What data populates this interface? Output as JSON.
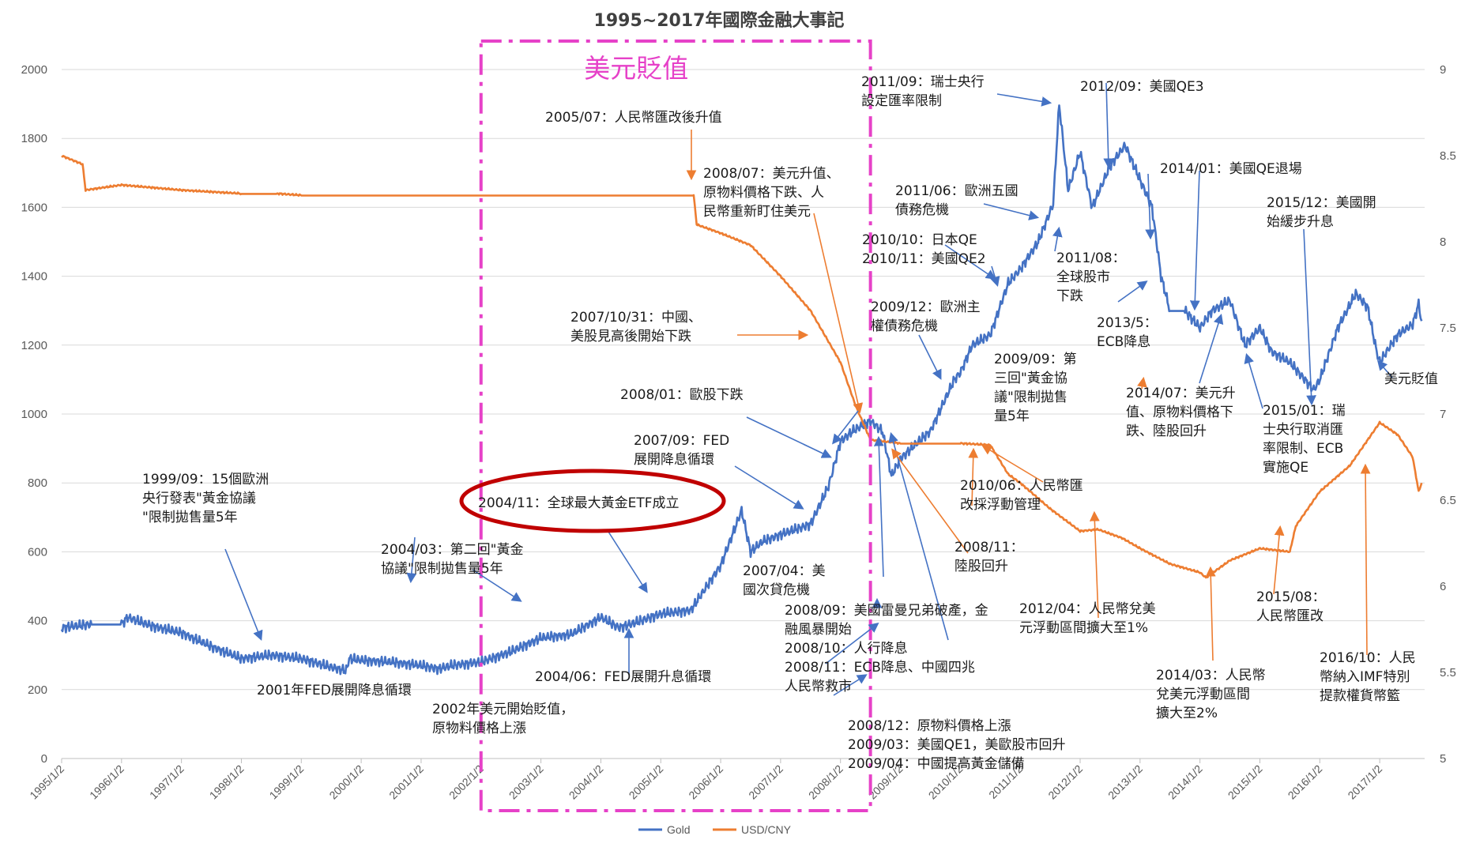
{
  "chart_data": {
    "type": "line",
    "title": "1995~2017年國際金融大事記",
    "y_left": {
      "ylim": [
        0,
        2000
      ],
      "ticks": [
        0,
        200,
        400,
        600,
        800,
        1000,
        1200,
        1400,
        1600,
        1800,
        2000
      ]
    },
    "y_right": {
      "ylim": [
        5,
        9
      ],
      "ticks": [
        5,
        5.5,
        6,
        6.5,
        7,
        7.5,
        8,
        8.5,
        9
      ]
    },
    "x_ticks": [
      "1995/1/2",
      "1996/1/2",
      "1997/1/2",
      "1998/1/2",
      "1999/1/2",
      "2000/1/2",
      "2001/1/2",
      "2002/1/2",
      "2003/1/2",
      "2004/1/2",
      "2005/1/2",
      "2006/1/2",
      "2007/1/2",
      "2008/1/2",
      "2009/1/2",
      "2010/1/2",
      "2011/1/2",
      "2012/1/2",
      "2013/1/2",
      "2014/1/2",
      "2015/1/2",
      "2016/1/2",
      "2017/1/2"
    ],
    "x_range": [
      1995.0,
      2017.75
    ],
    "series": [
      {
        "name": "Gold",
        "color": "#4472C4",
        "axis": "left",
        "x": [
          1995.0,
          1995.5,
          1996.0,
          1996.1,
          1996.5,
          1997.0,
          1997.5,
          1998.0,
          1998.5,
          1999.0,
          1999.5,
          1999.75,
          1999.8,
          2000.0,
          2000.5,
          2001.0,
          2001.3,
          2001.5,
          2002.0,
          2002.5,
          2003.0,
          2003.5,
          2004.0,
          2004.3,
          2004.5,
          2005.0,
          2005.5,
          2006.0,
          2006.35,
          2006.5,
          2006.7,
          2007.0,
          2007.5,
          2007.8,
          2008.0,
          2008.2,
          2008.5,
          2008.7,
          2008.85,
          2009.0,
          2009.3,
          2009.5,
          2009.9,
          2010.0,
          2010.2,
          2010.5,
          2010.8,
          2011.0,
          2011.3,
          2011.55,
          2011.65,
          2011.8,
          2012.0,
          2012.2,
          2012.5,
          2012.75,
          2013.0,
          2013.2,
          2013.35,
          2013.5,
          2013.75,
          2014.0,
          2014.2,
          2014.5,
          2014.75,
          2015.0,
          2015.2,
          2015.5,
          2015.9,
          2016.0,
          2016.3,
          2016.6,
          2016.8,
          2016.95,
          2017.0,
          2017.3,
          2017.55,
          2017.65,
          2017.7
        ],
        "values": [
          380,
          390,
          390,
          410,
          385,
          365,
          325,
          290,
          300,
          290,
          265,
          255,
          290,
          285,
          280,
          270,
          260,
          270,
          280,
          310,
          350,
          360,
          410,
          380,
          390,
          420,
          430,
          560,
          720,
          600,
          630,
          650,
          680,
          790,
          920,
          950,
          980,
          950,
          820,
          870,
          920,
          950,
          1100,
          1120,
          1200,
          1230,
          1380,
          1420,
          1500,
          1610,
          1900,
          1650,
          1760,
          1600,
          1720,
          1780,
          1680,
          1600,
          1400,
          1300,
          1300,
          1250,
          1300,
          1330,
          1200,
          1250,
          1180,
          1150,
          1070,
          1100,
          1250,
          1350,
          1310,
          1180,
          1150,
          1230,
          1260,
          1320,
          1270
        ]
      },
      {
        "name": "USD/CNY",
        "color": "#ED7D31",
        "axis": "right",
        "x": [
          1995.0,
          1995.35,
          1995.4,
          1996.0,
          1997.0,
          1998.0,
          1998.6,
          1999.0,
          2004.0,
          2005.55,
          2005.6,
          2006.0,
          2006.5,
          2007.0,
          2007.5,
          2008.0,
          2008.25,
          2008.5,
          2009.0,
          2009.5,
          2010.0,
          2010.5,
          2010.8,
          2011.0,
          2011.5,
          2012.0,
          2012.3,
          2012.7,
          2013.0,
          2013.5,
          2014.0,
          2014.1,
          2014.5,
          2015.0,
          2015.5,
          2015.6,
          2016.0,
          2016.5,
          2016.9,
          2017.0,
          2017.3,
          2017.55,
          2017.65,
          2017.7
        ],
        "values": [
          8.5,
          8.45,
          8.3,
          8.33,
          8.3,
          8.28,
          8.28,
          8.27,
          8.27,
          8.27,
          8.1,
          8.05,
          7.98,
          7.8,
          7.6,
          7.3,
          7.05,
          6.85,
          6.83,
          6.83,
          6.83,
          6.82,
          6.65,
          6.6,
          6.45,
          6.32,
          6.33,
          6.28,
          6.22,
          6.13,
          6.08,
          6.05,
          6.15,
          6.22,
          6.2,
          6.35,
          6.55,
          6.7,
          6.9,
          6.95,
          6.88,
          6.75,
          6.55,
          6.6
        ]
      }
    ],
    "legend": {
      "position": "bottom",
      "items": [
        "Gold",
        "USD/CNY"
      ]
    },
    "highlight_box": {
      "x0": 2002.0,
      "x1": 2008.5,
      "label": "美元貶值",
      "color": "#E641C8"
    },
    "annotations": [
      {
        "lines": [
          "2005/07：人民幣匯改後升值"
        ]
      },
      {
        "lines": [
          "2008/07：美元升值、",
          "原物料價格下跌、人",
          "民幣重新盯住美元"
        ]
      },
      {
        "lines": [
          "2007/10/31：中國、",
          "美股見高後開始下跌"
        ]
      },
      {
        "lines": [
          "2008/01：歐股下跌"
        ]
      },
      {
        "lines": [
          "2007/09：FED",
          "展開降息循環"
        ]
      },
      {
        "lines": [
          "2004/11：全球最大黃金ETF成立"
        ]
      },
      {
        "lines": [
          "1999/09：15個歐洲",
          "央行發表\"黃金協議",
          "\"限制拋售量5年"
        ]
      },
      {
        "lines": [
          "2004/03：第二回\"黃金",
          "協議\"限制拋售量5年"
        ]
      },
      {
        "lines": [
          "2001年FED展開降息循環"
        ]
      },
      {
        "lines": [
          "2002年美元開始貶值，",
          "原物料價格上漲"
        ]
      },
      {
        "lines": [
          "2004/06：FED展開升息循環"
        ]
      },
      {
        "lines": [
          "2007/04：美",
          "國次貸危機"
        ]
      },
      {
        "lines": [
          "2008/09：美國雷曼兄弟破產，金",
          "融風暴開始",
          "2008/10：人行降息",
          "2008/11：ECB降息、中國四兆",
          "人民幣救市"
        ]
      },
      {
        "lines": [
          "2008/12：原物料價格上漲",
          "2009/03：美國QE1，美歐股市回升",
          "2009/04：中國提高黃金儲備"
        ]
      },
      {
        "lines": [
          "2011/09：瑞士央行",
          "設定匯率限制"
        ]
      },
      {
        "lines": [
          "2012/09：美國QE3"
        ]
      },
      {
        "lines": [
          "2011/06：歐洲五國",
          "債務危機"
        ]
      },
      {
        "lines": [
          "2010/10：日本QE",
          "2010/11：美國QE2"
        ]
      },
      {
        "lines": [
          "2009/12：歐洲主",
          "權債務危機"
        ]
      },
      {
        "lines": [
          "2011/08：",
          "全球股市",
          "下跌"
        ]
      },
      {
        "lines": [
          "2013/5：",
          "ECB降息"
        ]
      },
      {
        "lines": [
          "2014/01：美國QE退場"
        ]
      },
      {
        "lines": [
          "2015/12：美國開",
          "始緩步升息"
        ]
      },
      {
        "lines": [
          "美元貶值"
        ]
      },
      {
        "lines": [
          "2009/09：第",
          "三回\"黃金協",
          "議\"限制拋售",
          "量5年"
        ]
      },
      {
        "lines": [
          "2010/06：人民幣匯",
          "改採浮動管理"
        ]
      },
      {
        "lines": [
          "2008/11：",
          "陸股回升"
        ]
      },
      {
        "lines": [
          "2014/07：美元升",
          "值、原物料價格下",
          "跌、陸股回升"
        ]
      },
      {
        "lines": [
          "2015/01：瑞",
          "士央行取消匯",
          "率限制、ECB",
          "實施QE"
        ]
      },
      {
        "lines": [
          "2012/04：人民幣兌美",
          "元浮動區間擴大至1%"
        ]
      },
      {
        "lines": [
          "2014/03：人民幣",
          "兌美元浮動區間",
          "擴大至2%"
        ]
      },
      {
        "lines": [
          "2015/08：",
          "人民幣匯改"
        ]
      },
      {
        "lines": [
          "2016/10：人民",
          "幣納入IMF特別",
          "提款權貨幣籃"
        ]
      }
    ]
  }
}
